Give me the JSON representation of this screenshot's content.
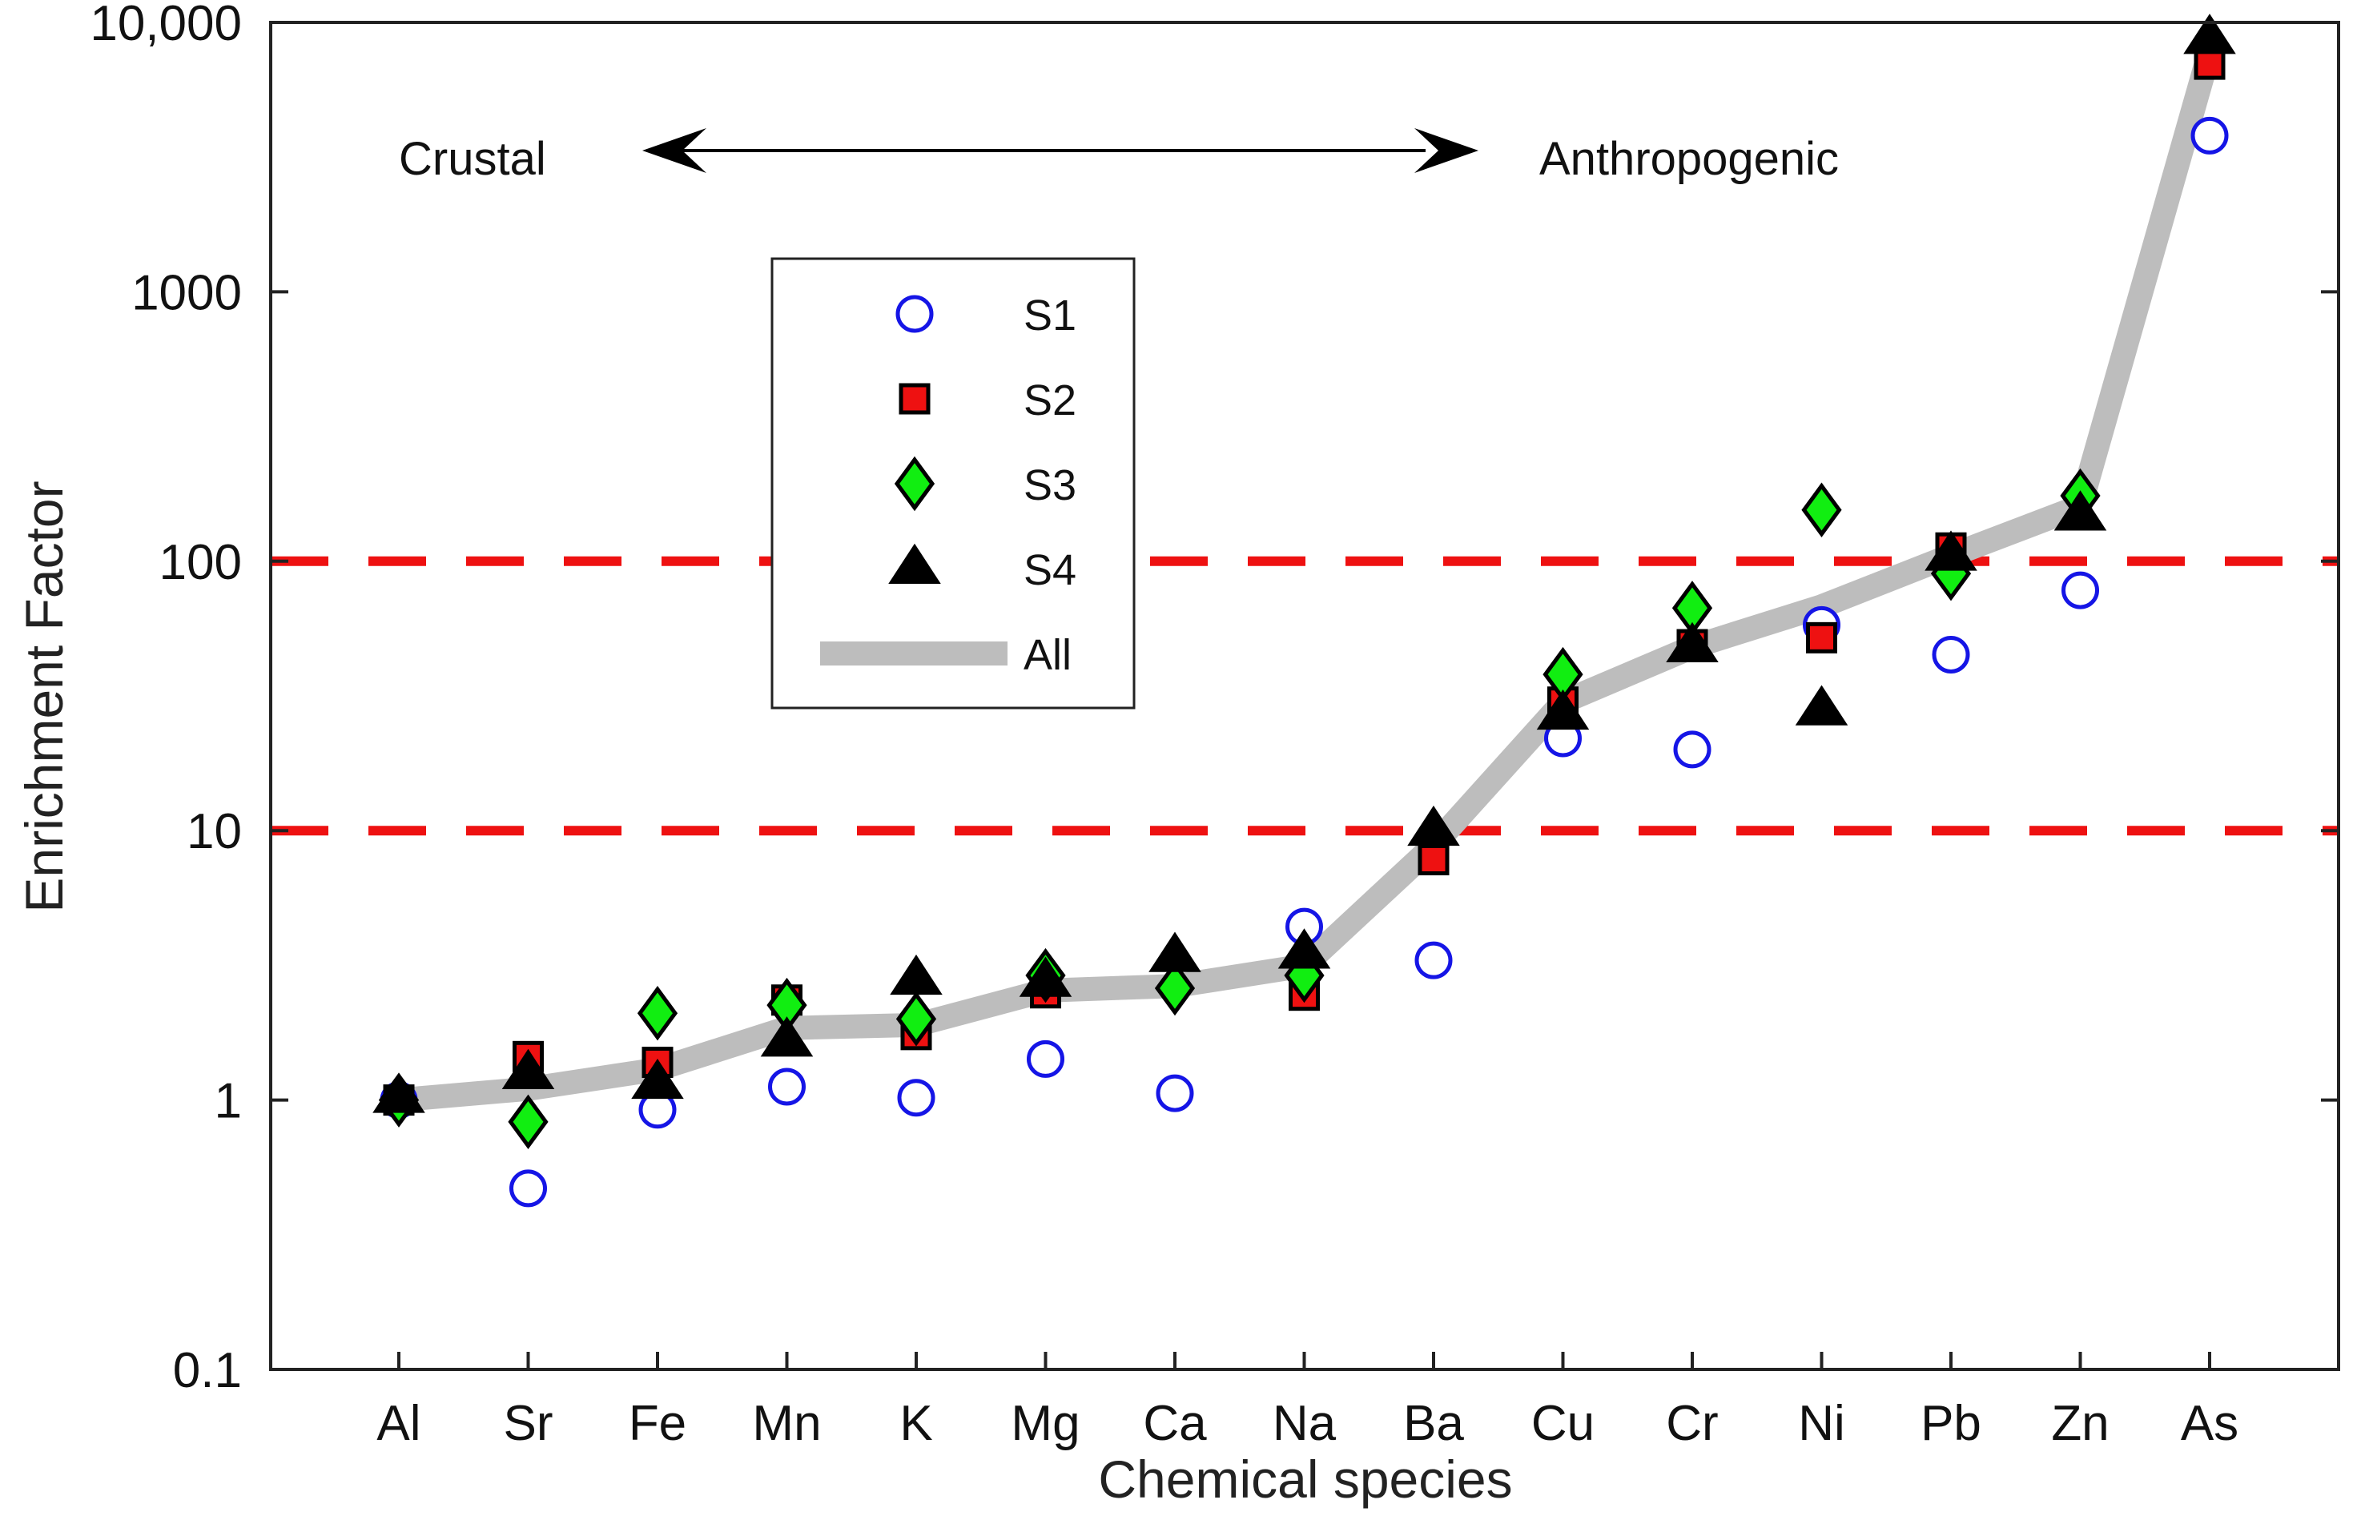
{
  "chart_data": {
    "type": "scatter",
    "xlabel": "Chemical species",
    "ylabel": "Enrichment Factor",
    "yscale": "log",
    "ylim": [
      0.1,
      10000
    ],
    "yticks": [
      {
        "value": 0.1,
        "label": "0.1"
      },
      {
        "value": 1,
        "label": "1"
      },
      {
        "value": 10,
        "label": "10"
      },
      {
        "value": 100,
        "label": "100"
      },
      {
        "value": 1000,
        "label": "1000"
      },
      {
        "value": 10000,
        "label": "10,000"
      }
    ],
    "categories": [
      "Al",
      "Sr",
      "Fe",
      "Mn",
      "K",
      "Mg",
      "Ca",
      "Na",
      "Ba",
      "Cu",
      "Cr",
      "Ni",
      "Pb",
      "Zn",
      "As"
    ],
    "series": [
      {
        "name": "S1",
        "marker": "circle",
        "values": [
          1.0,
          0.47,
          0.92,
          1.12,
          1.02,
          1.42,
          1.06,
          4.4,
          3.3,
          22,
          20,
          58,
          45,
          78,
          3800
        ]
      },
      {
        "name": "S2",
        "marker": "square",
        "values": [
          1.0,
          1.45,
          1.38,
          2.35,
          1.75,
          2.5,
          null,
          2.45,
          7.8,
          30,
          49,
          52,
          112,
          null,
          7000
        ]
      },
      {
        "name": "S3",
        "marker": "diamond",
        "values": [
          1.0,
          0.83,
          2.1,
          2.25,
          2.0,
          2.9,
          2.6,
          2.9,
          null,
          38,
          67,
          155,
          90,
          175,
          null
        ]
      },
      {
        "name": "S4",
        "marker": "triangle",
        "values": [
          1.02,
          1.25,
          1.15,
          1.65,
          2.8,
          2.75,
          3.4,
          3.5,
          10,
          27,
          48,
          28,
          105,
          148,
          8700
        ]
      },
      {
        "name": "All",
        "marker": "line",
        "values": [
          1.0,
          1.1,
          1.3,
          1.85,
          1.9,
          2.55,
          2.65,
          3.15,
          8.8,
          30,
          48,
          68,
          105,
          160,
          7800
        ]
      }
    ],
    "reference_lines": [
      {
        "value": 10,
        "style": "dashed",
        "color": "#ee1111"
      },
      {
        "value": 100,
        "style": "dashed",
        "color": "#ee1111"
      }
    ],
    "annotations": {
      "left": "Crustal",
      "right": "Anthropogenic"
    },
    "legend": {
      "position": "upper-left-center",
      "entries": [
        "S1",
        "S2",
        "S3",
        "S4",
        "All"
      ]
    },
    "colors": {
      "S1": "#1515e6",
      "S2": "#ee1111",
      "S3": "#11ee11",
      "S4": "#000000",
      "All": "#bdbdbd",
      "reference": "#ee1111"
    }
  }
}
